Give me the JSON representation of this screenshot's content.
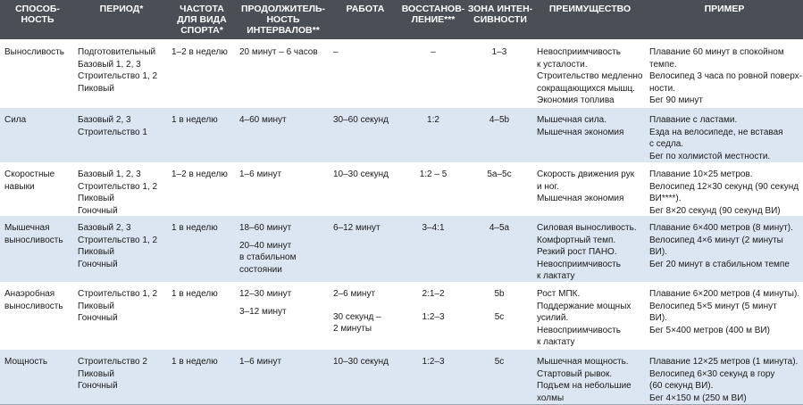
{
  "headers": [
    {
      "text": "СПОСОБ-\nНОСТЬ"
    },
    {
      "text": "ПЕРИОД*"
    },
    {
      "text": "ЧАСТОТА\nДЛЯ ВИДА\nСПОРТА*"
    },
    {
      "text": "ПРОДОЛЖИТЕЛЬ-\nНОСТЬ\nИНТЕРВАЛОВ**"
    },
    {
      "text": "РАБОТА"
    },
    {
      "text": "ВОССТАНОВ-\nЛЕНИЕ***"
    },
    {
      "text": "ЗОНА ИНТЕН-\nСИВНОСТИ"
    },
    {
      "text": "ПРЕИМУЩЕСТВО"
    },
    {
      "text": "ПРИМЕР"
    }
  ],
  "rows": [
    {
      "ability": [
        "Выносливость"
      ],
      "period": [
        "Подготовительный",
        "Базовый 1, 2, 3",
        "Строительство 1, 2",
        "Пиковый"
      ],
      "frequency": [
        "1–2 в неделю"
      ],
      "duration": [
        "20 минут – 6 часов"
      ],
      "work": [
        "–"
      ],
      "recovery": [
        "–"
      ],
      "zone": [
        "1–3"
      ],
      "benefit": [
        "Невосприимчивость",
        "к усталости.",
        "Строительство медленно",
        "сокращающихся мышц.",
        "Экономия топлива"
      ],
      "example": [
        "Плавание 60 минут в спокойном",
        "темпе.",
        "Велосипед 3 часа по ровной поверх-",
        "ности.",
        "Бег 90 минут"
      ]
    },
    {
      "ability": [
        "Сила"
      ],
      "period": [
        "Базовый 2, 3",
        "Строительство 1"
      ],
      "frequency": [
        "1 в неделю"
      ],
      "duration": [
        "4–60 минут"
      ],
      "work": [
        "30–60 секунд"
      ],
      "recovery": [
        "1:2"
      ],
      "zone": [
        "4–5b"
      ],
      "benefit": [
        "Мышечная сила.",
        "Мышечная экономия"
      ],
      "example": [
        "Плавание с ластами.",
        "Езда на велосипеде, не вставая",
        "с седла.",
        "Бег по холмистой местности."
      ]
    },
    {
      "ability": [
        "Скоростные",
        "навыки"
      ],
      "period": [
        "Базовый 1, 2,  3",
        "Строительство 1, 2",
        "Пиковый",
        "Гоночный"
      ],
      "frequency": [
        "1–2 в неделю"
      ],
      "duration": [
        "1–6 минут"
      ],
      "work": [
        "10–30 секунд"
      ],
      "recovery": [
        "1:2 – 5"
      ],
      "zone": [
        "5a–5c"
      ],
      "benefit": [
        "Скорость движения рук",
        "и ног.",
        "Мышечная экономия"
      ],
      "example": [
        "Плавание 10×25 метров.",
        "Велосипед 12×30 секунд (90 секунд",
        "ВИ****).",
        "Бег 8×20 секунд (90 секунд ВИ)"
      ]
    },
    {
      "ability": [
        "Мышечная",
        "выносливость"
      ],
      "period": [
        "Базовый 2, 3",
        "Строительство 1, 2",
        "Пиковый",
        "Гоночный"
      ],
      "frequency": [
        "1 в неделю"
      ],
      "duration": [
        "18–60 минут",
        "",
        "20–40 минут",
        "в стабильном",
        "состоянии"
      ],
      "work": [
        "6–12 минут"
      ],
      "recovery": [
        "3–4:1"
      ],
      "zone": [
        "4–5a"
      ],
      "benefit": [
        "Силовая выносливость.",
        "Комфортный темп.",
        "Резкий рост ПАНО.",
        "Невосприимчивость",
        "к лактату"
      ],
      "example": [
        "Плавание 6×400 метров (8 минут).",
        "Велосипед 4×6 минут (2 минуты",
        "ВИ).",
        "Бег 20 минут в стабильном темпе"
      ]
    },
    {
      "ability": [
        "Анаэробная",
        "выносливость"
      ],
      "period": [
        "Строительство 1, 2",
        "Пиковый",
        "Гоночный"
      ],
      "frequency": [
        "1 в неделю"
      ],
      "duration": [
        "12–30 минут",
        "",
        "3–12 минут"
      ],
      "work": [
        "2–6 минут",
        "",
        "",
        "30 секунд –",
        "2 минуты"
      ],
      "recovery": [
        "2:1–2",
        "",
        "",
        "1:2–3"
      ],
      "zone": [
        "5b",
        "",
        "",
        "5c"
      ],
      "benefit": [
        "Рост МПК.",
        "Поддержание мощных",
        "усилий.",
        "Невосприимчивость",
        "к лактату"
      ],
      "example": [
        "Плавание 6×200 метров (4 минуты).",
        "Велосипед 5×5 минут (5 минут",
        "ВИ).",
        "Бег 5×400 метров (400 м ВИ)"
      ]
    },
    {
      "ability": [
        "Мощность"
      ],
      "period": [
        "Строительство 2",
        "Пиковый",
        "Гоночный"
      ],
      "frequency": [
        "1 в неделю"
      ],
      "duration": [
        "1–6 минут"
      ],
      "work": [
        "10–30 секунд"
      ],
      "recovery": [
        "1:2–3"
      ],
      "zone": [
        "5c"
      ],
      "benefit": [
        "Мышечная мощность.",
        "Стартовый рывок.",
        "Подъем на небольшие",
        "холмы"
      ],
      "example": [
        "Плавание 12×25 метров (1 минута).",
        "Велосипед 6×30 секунд в гору",
        "(60 секунд ВИ).",
        "Бег 4×150 м (250 м ВИ)"
      ]
    }
  ]
}
